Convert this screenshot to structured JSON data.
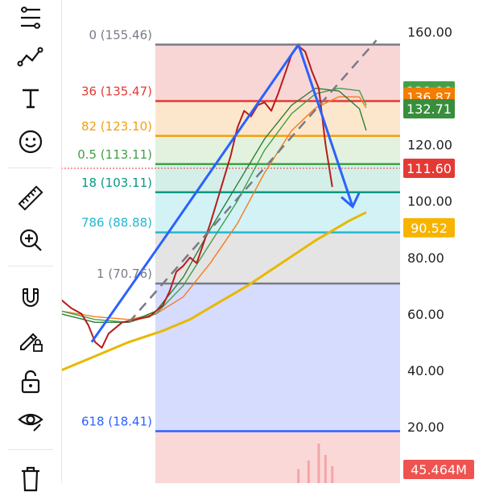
{
  "toolbar": {
    "items": [
      {
        "name": "fib-retracement-tool-icon",
        "label": "Fib retracement"
      },
      {
        "name": "trend-line-tool-icon",
        "label": "Trend line"
      },
      {
        "name": "text-tool-icon",
        "label": "Text"
      },
      {
        "name": "emoji-tool-icon",
        "label": "Emoji"
      },
      {
        "name": "ruler-tool-icon",
        "label": "Measure"
      },
      {
        "name": "zoom-in-tool-icon",
        "label": "Zoom in"
      },
      {
        "name": "magnet-tool-icon",
        "label": "Magnet"
      },
      {
        "name": "lock-drawing-tool-icon",
        "label": "Lock drawings"
      },
      {
        "name": "unlock-tool-icon",
        "label": "Unlock"
      },
      {
        "name": "hide-drawings-tool-icon",
        "label": "Hide drawings"
      },
      {
        "name": "trash-tool-icon",
        "label": "Remove"
      }
    ]
  },
  "price_axis": {
    "ticks": [
      "160.00",
      "120.00",
      "100.00",
      "80.00",
      "60.00",
      "40.00",
      "20.00"
    ],
    "tick_values": [
      160,
      120,
      100,
      80,
      60,
      40,
      20
    ],
    "markers": [
      {
        "text": "139.06",
        "value": 139.06,
        "color": "#43a047"
      },
      {
        "text": "136.87",
        "value": 136.87,
        "color": "#f57c00"
      },
      {
        "text": "132.71",
        "value": 132.71,
        "color": "#388e3c"
      },
      {
        "text": "111.60",
        "value": 111.6,
        "color": "#e53935"
      },
      {
        "text": "90.52",
        "value": 90.52,
        "color": "#f6b400"
      }
    ],
    "volume_badge": {
      "text": "45.464M",
      "color": "#ef5350"
    }
  },
  "fib_levels": [
    {
      "label": "0 (155.46)",
      "value": 155.46,
      "color": "#787b86"
    },
    {
      "label": "36 (135.47)",
      "value": 135.47,
      "color": "#e53935"
    },
    {
      "label": "82 (123.10)",
      "value": 123.1,
      "color": "#f59e0b"
    },
    {
      "label": "0.5 (113.11)",
      "value": 113.11,
      "color": "#43a047"
    },
    {
      "label": "18 (103.11)",
      "value": 103.11,
      "color": "#089981"
    },
    {
      "label": "786 (88.88)",
      "value": 88.88,
      "color": "#22b8cf"
    },
    {
      "label": "1 (70.76)",
      "value": 70.76,
      "color": "#787b86"
    },
    {
      "label": "618 (18.41)",
      "value": 18.41,
      "color": "#2962ff"
    }
  ],
  "chart_data": {
    "type": "line",
    "y_range": [
      0,
      165
    ],
    "ticks": [
      160,
      120,
      100,
      80,
      60,
      40,
      20
    ],
    "current_price": 111.6,
    "current_price_color": "#e53935",
    "fib_bands": [
      {
        "from": 155.46,
        "to": 135.47,
        "color": "#f8d6d6"
      },
      {
        "from": 135.47,
        "to": 123.1,
        "color": "#fde7cc"
      },
      {
        "from": 123.1,
        "to": 113.11,
        "color": "#e2f2de"
      },
      {
        "from": 113.11,
        "to": 103.11,
        "color": "#d4efe8"
      },
      {
        "from": 103.11,
        "to": 88.88,
        "color": "#d2f2f6"
      },
      {
        "from": 88.88,
        "to": 70.76,
        "color": "#e4e4e4"
      },
      {
        "from": 70.76,
        "to": 18.41,
        "color": "#d6dcfd"
      },
      {
        "from": 18.41,
        "to": 0,
        "color": "#fad8d8"
      }
    ],
    "series": [
      {
        "color": "#e8b800",
        "values": [
          [
            0,
            40
          ],
          [
            0.1,
            45
          ],
          [
            0.2,
            50
          ],
          [
            0.3,
            54
          ],
          [
            0.38,
            58
          ],
          [
            0.45,
            63
          ],
          [
            0.55,
            70
          ],
          [
            0.65,
            78
          ],
          [
            0.75,
            86
          ],
          [
            0.85,
            93
          ],
          [
            0.9,
            96
          ]
        ]
      },
      {
        "color": "#f47c20",
        "values": [
          [
            0,
            61
          ],
          [
            0.1,
            59
          ],
          [
            0.2,
            58
          ],
          [
            0.28,
            60
          ],
          [
            0.36,
            66
          ],
          [
            0.44,
            78
          ],
          [
            0.52,
            92
          ],
          [
            0.6,
            110
          ],
          [
            0.68,
            125
          ],
          [
            0.75,
            133
          ],
          [
            0.82,
            137
          ],
          [
            0.88,
            136.9
          ],
          [
            0.9,
            133
          ]
        ]
      },
      {
        "color": "#43a047",
        "values": [
          [
            0,
            61
          ],
          [
            0.1,
            58
          ],
          [
            0.2,
            57
          ],
          [
            0.28,
            60
          ],
          [
            0.36,
            70
          ],
          [
            0.44,
            85
          ],
          [
            0.52,
            100
          ],
          [
            0.6,
            118
          ],
          [
            0.68,
            131
          ],
          [
            0.75,
            138
          ],
          [
            0.82,
            140
          ],
          [
            0.88,
            139.1
          ],
          [
            0.9,
            134
          ]
        ]
      },
      {
        "color": "#2e7d32",
        "values": [
          [
            0,
            60
          ],
          [
            0.1,
            57
          ],
          [
            0.2,
            57
          ],
          [
            0.28,
            61
          ],
          [
            0.36,
            73
          ],
          [
            0.44,
            90
          ],
          [
            0.52,
            106
          ],
          [
            0.6,
            122
          ],
          [
            0.68,
            134
          ],
          [
            0.75,
            140
          ],
          [
            0.82,
            139
          ],
          [
            0.88,
            132.7
          ],
          [
            0.9,
            125
          ]
        ]
      },
      {
        "color": "#b71c1c",
        "values": [
          [
            0,
            65
          ],
          [
            0.03,
            62
          ],
          [
            0.06,
            60
          ],
          [
            0.08,
            56
          ],
          [
            0.1,
            50
          ],
          [
            0.12,
            48
          ],
          [
            0.14,
            53
          ],
          [
            0.18,
            57
          ],
          [
            0.22,
            58
          ],
          [
            0.26,
            59
          ],
          [
            0.28,
            61
          ],
          [
            0.3,
            63
          ],
          [
            0.32,
            68
          ],
          [
            0.34,
            75
          ],
          [
            0.36,
            77
          ],
          [
            0.38,
            80
          ],
          [
            0.4,
            78
          ],
          [
            0.42,
            85
          ],
          [
            0.44,
            92
          ],
          [
            0.46,
            100
          ],
          [
            0.48,
            108
          ],
          [
            0.5,
            116
          ],
          [
            0.52,
            126
          ],
          [
            0.54,
            132
          ],
          [
            0.56,
            130
          ],
          [
            0.58,
            134
          ],
          [
            0.6,
            135
          ],
          [
            0.62,
            132
          ],
          [
            0.64,
            138
          ],
          [
            0.66,
            145
          ],
          [
            0.68,
            152
          ],
          [
            0.7,
            155
          ],
          [
            0.72,
            153
          ],
          [
            0.74,
            146
          ],
          [
            0.76,
            140
          ],
          [
            0.78,
            120
          ],
          [
            0.8,
            105
          ]
        ]
      }
    ],
    "pattern_zigzag": [
      [
        0.09,
        50
      ],
      [
        0.3,
        86
      ],
      [
        0.7,
        155.46
      ],
      [
        0.86,
        98
      ]
    ],
    "dashed_trend": [
      [
        0.2,
        57
      ],
      [
        0.93,
        157
      ]
    ],
    "fib_top_line": [
      [
        0.28,
        155.46
      ],
      [
        1.0,
        155.46
      ]
    ],
    "volume_bars": [
      [
        0.7,
        5
      ],
      [
        0.73,
        8
      ],
      [
        0.76,
        14
      ],
      [
        0.78,
        10
      ],
      [
        0.8,
        6
      ]
    ]
  }
}
